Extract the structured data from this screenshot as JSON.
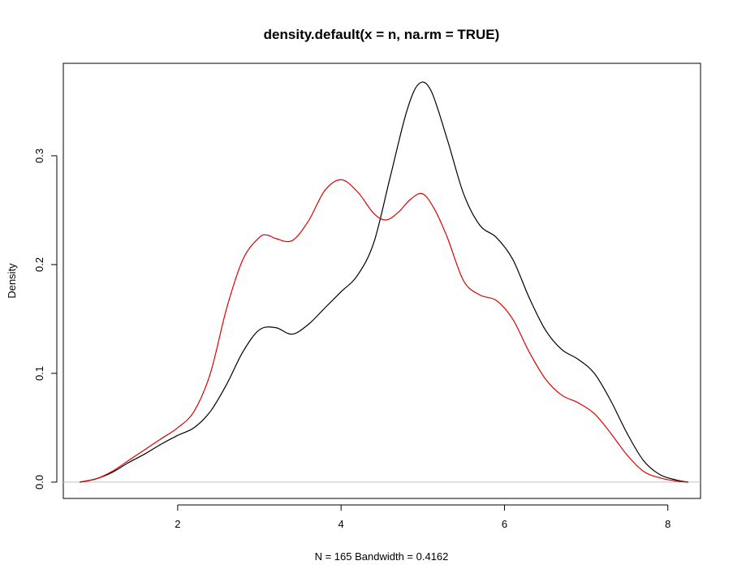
{
  "chart_data": {
    "type": "line",
    "title": "density.default(x = n, na.rm = TRUE)",
    "xlabel": "N = 165   Bandwidth = 0.4162",
    "ylabel": "Density",
    "xlim": [
      0.6,
      8.4
    ],
    "ylim": [
      -0.015,
      0.385
    ],
    "x_ticks": [
      2,
      4,
      6,
      8
    ],
    "y_ticks": [
      0.0,
      0.1,
      0.2,
      0.3
    ],
    "x_tick_labels": [
      "2",
      "4",
      "6",
      "8"
    ],
    "y_tick_labels": [
      "0.0",
      "0.1",
      "0.2",
      "0.3"
    ],
    "grid": false,
    "baseline": {
      "y": 0,
      "color": "#c0c0c0"
    },
    "series": [
      {
        "color": "#000000",
        "x": [
          0.8,
          1.0,
          1.2,
          1.4,
          1.6,
          1.8,
          2.0,
          2.2,
          2.4,
          2.6,
          2.8,
          3.0,
          3.2,
          3.4,
          3.6,
          3.8,
          4.0,
          4.2,
          4.4,
          4.6,
          4.8,
          4.95,
          5.1,
          5.3,
          5.5,
          5.7,
          5.9,
          6.1,
          6.3,
          6.5,
          6.7,
          6.9,
          7.1,
          7.3,
          7.5,
          7.7,
          7.9,
          8.1,
          8.25
        ],
        "y": [
          0.0,
          0.003,
          0.009,
          0.018,
          0.026,
          0.035,
          0.043,
          0.05,
          0.065,
          0.09,
          0.12,
          0.14,
          0.142,
          0.136,
          0.145,
          0.16,
          0.175,
          0.19,
          0.22,
          0.28,
          0.34,
          0.366,
          0.36,
          0.315,
          0.265,
          0.236,
          0.225,
          0.205,
          0.17,
          0.14,
          0.122,
          0.113,
          0.1,
          0.075,
          0.045,
          0.02,
          0.007,
          0.002,
          0.0
        ]
      },
      {
        "color": "#e00000",
        "x": [
          0.8,
          1.0,
          1.2,
          1.4,
          1.6,
          1.8,
          2.0,
          2.2,
          2.4,
          2.6,
          2.8,
          3.0,
          3.1,
          3.2,
          3.4,
          3.6,
          3.8,
          4.0,
          4.2,
          4.4,
          4.55,
          4.7,
          4.85,
          5.0,
          5.15,
          5.3,
          5.5,
          5.7,
          5.9,
          6.1,
          6.3,
          6.5,
          6.7,
          6.9,
          7.1,
          7.3,
          7.5,
          7.7,
          7.9,
          8.1,
          8.25
        ],
        "y": [
          0.0,
          0.003,
          0.01,
          0.02,
          0.03,
          0.04,
          0.05,
          0.065,
          0.1,
          0.16,
          0.205,
          0.225,
          0.227,
          0.224,
          0.222,
          0.24,
          0.268,
          0.278,
          0.267,
          0.247,
          0.241,
          0.248,
          0.26,
          0.265,
          0.25,
          0.225,
          0.185,
          0.172,
          0.167,
          0.15,
          0.12,
          0.095,
          0.08,
          0.073,
          0.063,
          0.045,
          0.025,
          0.01,
          0.004,
          0.001,
          0.0
        ]
      }
    ]
  }
}
